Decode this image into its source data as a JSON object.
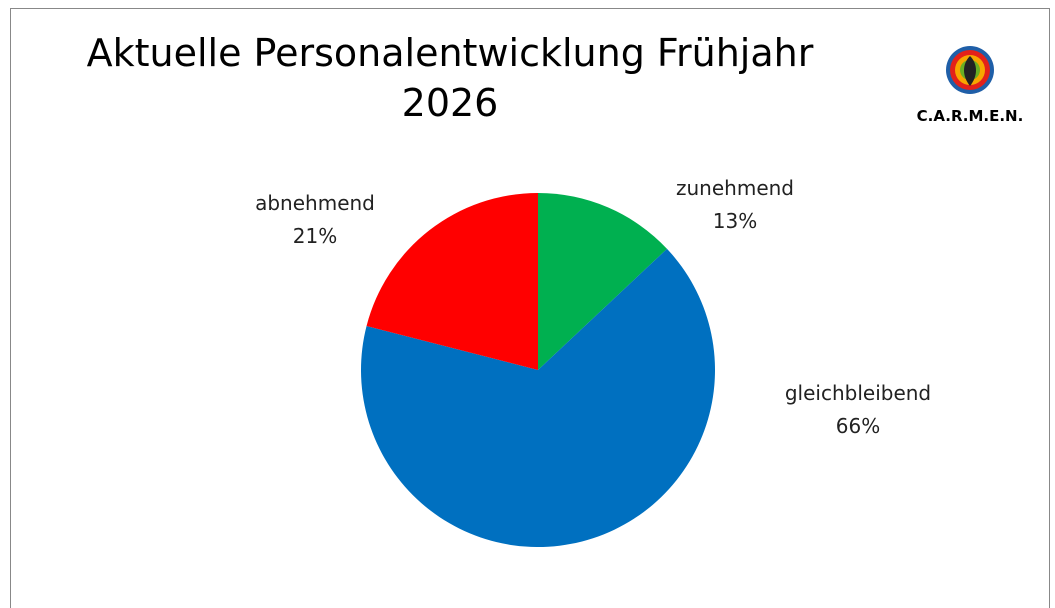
{
  "chart_data": {
    "type": "pie",
    "title": "Aktuelle Personalentwicklung Frühjahr 2026",
    "categories": [
      "zunehmend",
      "gleichbleibend",
      "abnehmend"
    ],
    "values": [
      13,
      66,
      21
    ],
    "value_labels": [
      "13%",
      "66%",
      "21%"
    ],
    "colors": [
      "#00b050",
      "#0070c0",
      "#ff0000"
    ]
  },
  "logo": {
    "text": "C.A.R.M.E.N."
  }
}
